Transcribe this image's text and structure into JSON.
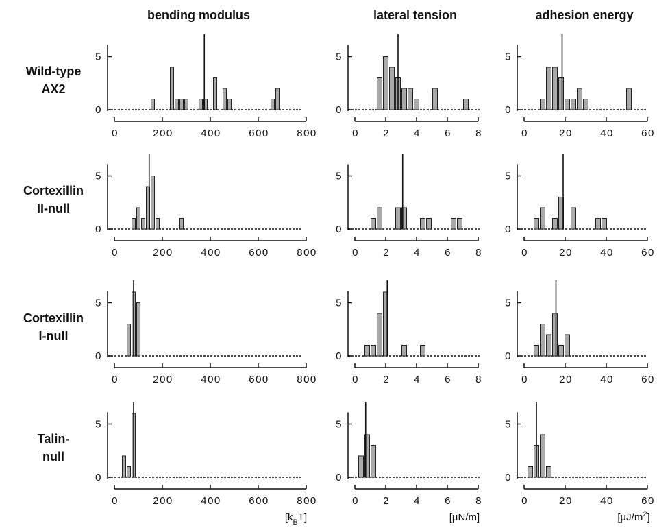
{
  "columns": [
    {
      "title": "bending modulus",
      "unit": "[kBT]",
      "unit_main": "[k",
      "unit_sub": "B",
      "unit_end": "T]"
    },
    {
      "title": "lateral tension",
      "unit": "[µN/m]",
      "unit_main": "[µN/m]",
      "unit_sub": "",
      "unit_end": ""
    },
    {
      "title": "adhesion energy",
      "unit": "[µJ/m2]",
      "unit_main": "[µJ/m",
      "unit_sup": "2",
      "unit_end": "]"
    }
  ],
  "rows": [
    {
      "label_lines": [
        "Wild-type",
        "AX2"
      ]
    },
    {
      "label_lines": [
        "Cortexillin",
        "II-null"
      ]
    },
    {
      "label_lines": [
        "Cortexillin",
        "I-null"
      ]
    },
    {
      "label_lines": [
        "Talin-",
        "null"
      ]
    }
  ],
  "chart_data": [
    {
      "type": "bar",
      "row": 0,
      "col": 0,
      "xlim": [
        0,
        800
      ],
      "ylim": [
        0,
        6
      ],
      "xticks": [
        "0",
        "200",
        "400",
        "600",
        "800"
      ],
      "yticks": [
        "0",
        "5"
      ],
      "bin_width": 20,
      "bins": [
        [
          160,
          1
        ],
        [
          240,
          4
        ],
        [
          260,
          1
        ],
        [
          280,
          1
        ],
        [
          300,
          1
        ],
        [
          360,
          1
        ],
        [
          380,
          1
        ],
        [
          420,
          3
        ],
        [
          460,
          2
        ],
        [
          480,
          1
        ],
        [
          660,
          1
        ],
        [
          680,
          2
        ]
      ],
      "mean": 375
    },
    {
      "type": "bar",
      "row": 0,
      "col": 1,
      "xlim": [
        0,
        8
      ],
      "ylim": [
        0,
        6
      ],
      "xticks": [
        "0",
        "2",
        "4",
        "6",
        "8"
      ],
      "yticks": [
        "0",
        "5"
      ],
      "bin_width": 0.4,
      "bins": [
        [
          1.6,
          3
        ],
        [
          2.0,
          5
        ],
        [
          2.4,
          4
        ],
        [
          2.8,
          3
        ],
        [
          3.2,
          2
        ],
        [
          3.6,
          2
        ],
        [
          4.0,
          1
        ],
        [
          5.2,
          2
        ],
        [
          7.2,
          1
        ]
      ],
      "mean": 2.8
    },
    {
      "type": "bar",
      "row": 0,
      "col": 2,
      "xlim": [
        0,
        60
      ],
      "ylim": [
        0,
        6
      ],
      "xticks": [
        "0",
        "20",
        "40",
        "60"
      ],
      "yticks": [
        "0",
        "5"
      ],
      "bin_width": 3,
      "bins": [
        [
          9,
          1
        ],
        [
          12,
          4
        ],
        [
          15,
          4
        ],
        [
          18,
          3
        ],
        [
          21,
          1
        ],
        [
          24,
          1
        ],
        [
          27,
          2
        ],
        [
          30,
          1
        ],
        [
          51,
          2
        ]
      ],
      "mean": 18.5
    },
    {
      "type": "bar",
      "row": 1,
      "col": 0,
      "xlim": [
        0,
        800
      ],
      "ylim": [
        0,
        6
      ],
      "xticks": [
        "0",
        "200",
        "400",
        "600",
        "800"
      ],
      "yticks": [
        "0",
        "5"
      ],
      "bin_width": 20,
      "bins": [
        [
          80,
          1
        ],
        [
          100,
          2
        ],
        [
          120,
          1
        ],
        [
          140,
          4
        ],
        [
          160,
          5
        ],
        [
          180,
          1
        ],
        [
          280,
          1
        ]
      ],
      "mean": 145
    },
    {
      "type": "bar",
      "row": 1,
      "col": 1,
      "xlim": [
        0,
        8
      ],
      "ylim": [
        0,
        6
      ],
      "xticks": [
        "0",
        "2",
        "4",
        "6",
        "8"
      ],
      "yticks": [
        "0",
        "5"
      ],
      "bin_width": 0.4,
      "bins": [
        [
          1.2,
          1
        ],
        [
          1.6,
          2
        ],
        [
          2.8,
          2
        ],
        [
          3.2,
          2
        ],
        [
          4.4,
          1
        ],
        [
          4.8,
          1
        ],
        [
          6.4,
          1
        ],
        [
          6.8,
          1
        ]
      ],
      "mean": 3.1
    },
    {
      "type": "bar",
      "row": 1,
      "col": 2,
      "xlim": [
        0,
        60
      ],
      "ylim": [
        0,
        6
      ],
      "xticks": [
        "0",
        "20",
        "40",
        "60"
      ],
      "yticks": [
        "0",
        "5"
      ],
      "bin_width": 3,
      "bins": [
        [
          6,
          1
        ],
        [
          9,
          2
        ],
        [
          15,
          1
        ],
        [
          18,
          3
        ],
        [
          24,
          2
        ],
        [
          36,
          1
        ],
        [
          39,
          1
        ]
      ],
      "mean": 19
    },
    {
      "type": "bar",
      "row": 2,
      "col": 0,
      "xlim": [
        0,
        800
      ],
      "ylim": [
        0,
        6
      ],
      "xticks": [
        "0",
        "200",
        "400",
        "600",
        "800"
      ],
      "yticks": [
        "0",
        "5"
      ],
      "bin_width": 20,
      "bins": [
        [
          60,
          3
        ],
        [
          80,
          6
        ],
        [
          100,
          5
        ]
      ],
      "mean": 80
    },
    {
      "type": "bar",
      "row": 2,
      "col": 1,
      "xlim": [
        0,
        8
      ],
      "ylim": [
        0,
        6
      ],
      "xticks": [
        "0",
        "2",
        "4",
        "6",
        "8"
      ],
      "yticks": [
        "0",
        "5"
      ],
      "bin_width": 0.4,
      "bins": [
        [
          0.8,
          1
        ],
        [
          1.2,
          1
        ],
        [
          1.6,
          4
        ],
        [
          2.0,
          6
        ],
        [
          3.2,
          1
        ],
        [
          4.4,
          1
        ]
      ],
      "mean": 2.1
    },
    {
      "type": "bar",
      "row": 2,
      "col": 2,
      "xlim": [
        0,
        60
      ],
      "ylim": [
        0,
        6
      ],
      "xticks": [
        "0",
        "20",
        "40",
        "60"
      ],
      "yticks": [
        "0",
        "5"
      ],
      "bin_width": 3,
      "bins": [
        [
          6,
          1
        ],
        [
          9,
          3
        ],
        [
          12,
          2
        ],
        [
          15,
          4
        ],
        [
          18,
          1
        ],
        [
          21,
          2
        ]
      ],
      "mean": 15.5
    },
    {
      "type": "bar",
      "row": 3,
      "col": 0,
      "xlim": [
        0,
        800
      ],
      "ylim": [
        0,
        6
      ],
      "xticks": [
        "0",
        "200",
        "400",
        "600",
        "800"
      ],
      "yticks": [
        "0",
        "5"
      ],
      "bin_width": 20,
      "bins": [
        [
          40,
          2
        ],
        [
          60,
          1
        ],
        [
          80,
          6
        ]
      ],
      "mean": 80
    },
    {
      "type": "bar",
      "row": 3,
      "col": 1,
      "xlim": [
        0,
        8
      ],
      "ylim": [
        0,
        6
      ],
      "xticks": [
        "0",
        "2",
        "4",
        "6",
        "8"
      ],
      "yticks": [
        "0",
        "5"
      ],
      "bin_width": 0.4,
      "bins": [
        [
          0.4,
          2
        ],
        [
          0.8,
          4
        ],
        [
          1.2,
          3
        ]
      ],
      "mean": 0.7
    },
    {
      "type": "bar",
      "row": 3,
      "col": 2,
      "xlim": [
        0,
        60
      ],
      "ylim": [
        0,
        6
      ],
      "xticks": [
        "0",
        "20",
        "40",
        "60"
      ],
      "yticks": [
        "0",
        "5"
      ],
      "bin_width": 3,
      "bins": [
        [
          3,
          1
        ],
        [
          6,
          3
        ],
        [
          9,
          4
        ],
        [
          12,
          1
        ]
      ],
      "mean": 6
    }
  ]
}
